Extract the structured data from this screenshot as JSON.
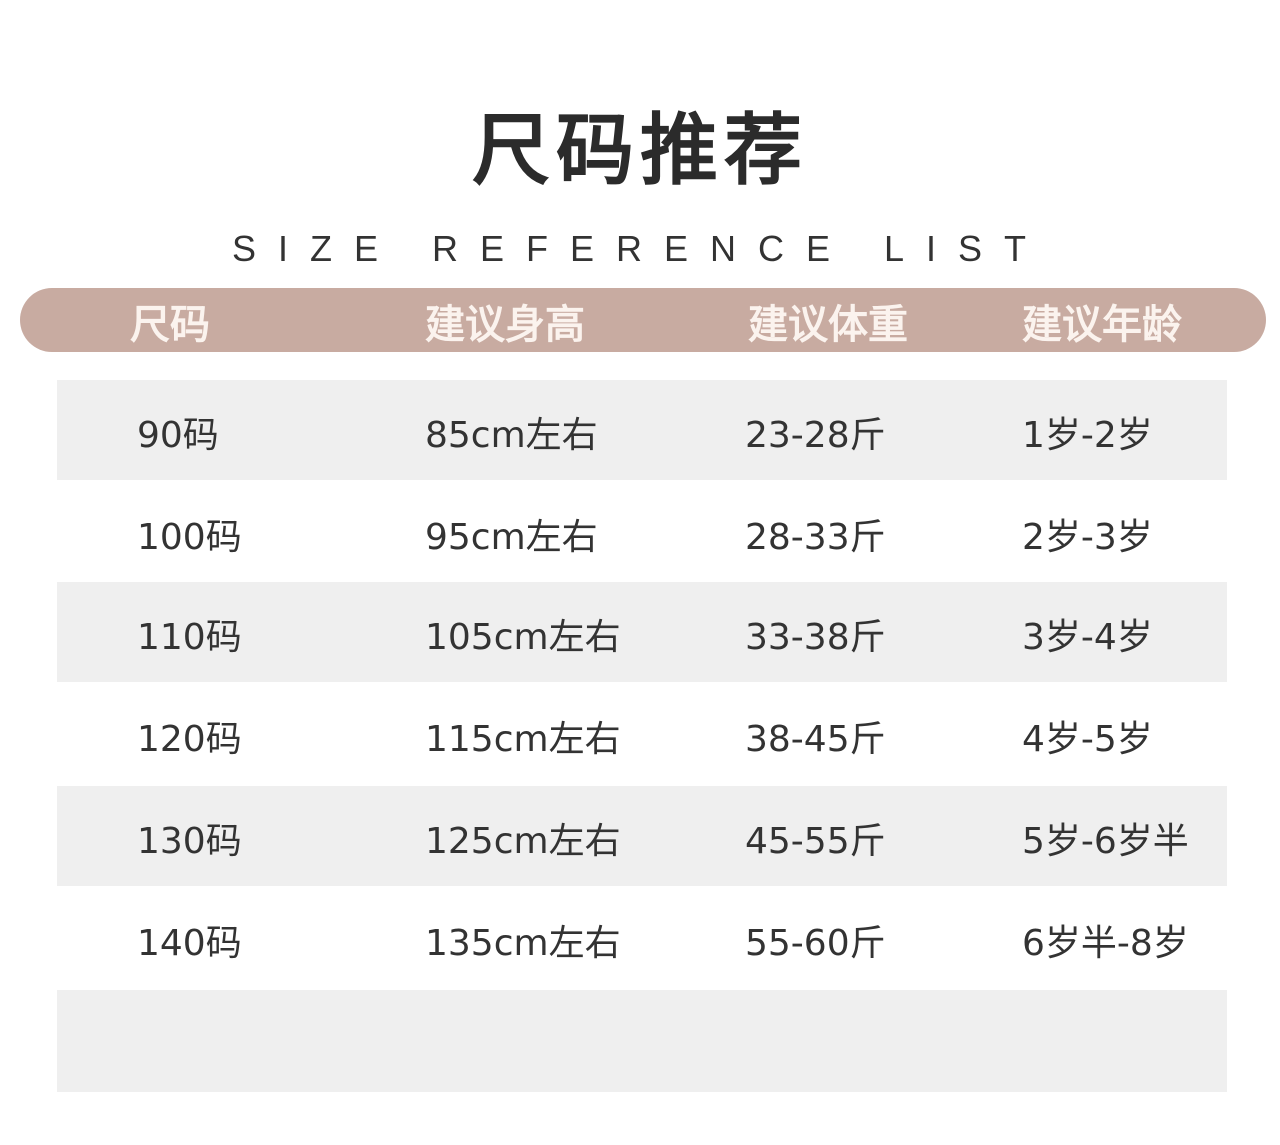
{
  "title": "尺码推荐",
  "subtitle": "SIZE REFERENCE LIST",
  "colors": {
    "header_bg": "#c8aba1",
    "header_text": "#fbf3ee",
    "row_shade": "#efefef"
  },
  "table": {
    "headers": [
      "尺码",
      "建议身高",
      "建议体重",
      "建议年龄"
    ],
    "rows": [
      [
        "90码",
        "85cm左右",
        "23-28斤",
        "1岁-2岁"
      ],
      [
        "100码",
        "95cm左右",
        "28-33斤",
        "2岁-3岁"
      ],
      [
        "110码",
        "105cm左右",
        "33-38斤",
        "3岁-4岁"
      ],
      [
        "120码",
        "115cm左右",
        "38-45斤",
        "4岁-5岁"
      ],
      [
        "130码",
        "125cm左右",
        "45-55斤",
        "5岁-6岁半"
      ],
      [
        "140码",
        "135cm左右",
        "55-60斤",
        "6岁半-8岁"
      ]
    ]
  }
}
